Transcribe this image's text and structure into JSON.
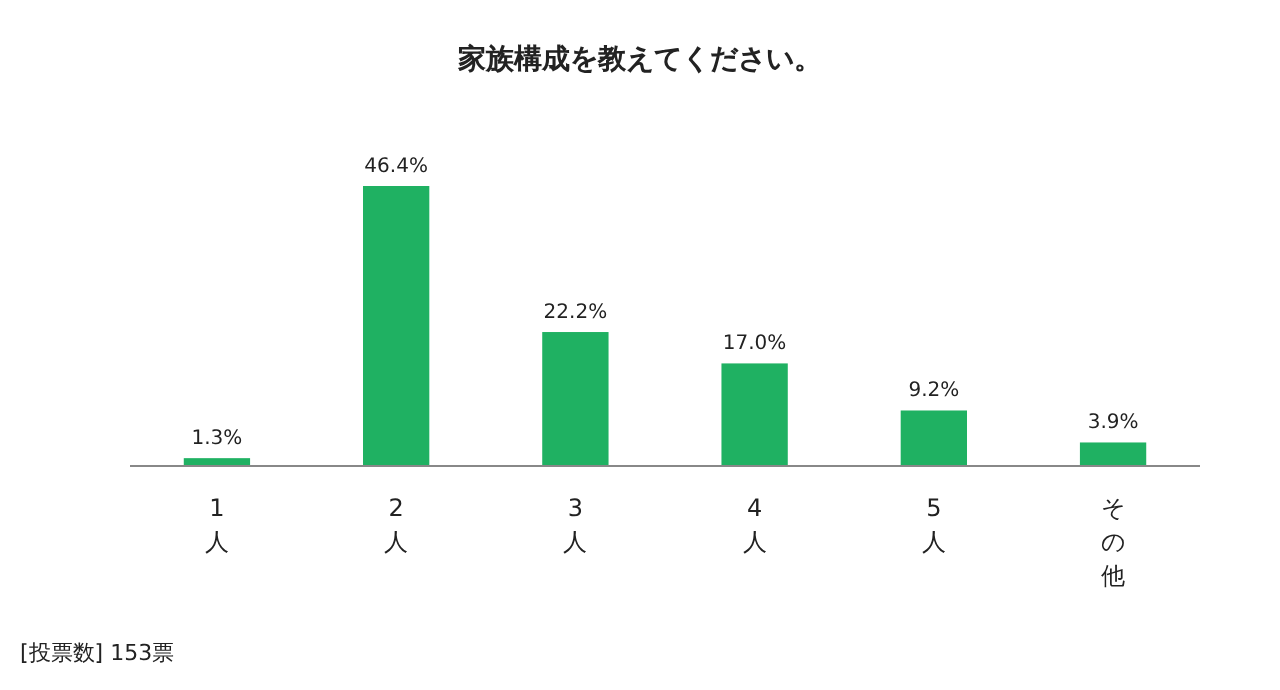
{
  "chart_data": {
    "type": "bar",
    "title": "家族構成を教えてください。",
    "categories": [
      "1人",
      "2人",
      "3人",
      "4人",
      "5人",
      "その他"
    ],
    "values": [
      1.3,
      46.4,
      22.2,
      17.0,
      9.2,
      3.9
    ],
    "value_labels": [
      "1.3%",
      "46.4%",
      "22.2%",
      "17.0%",
      "9.2%",
      "3.9%"
    ],
    "color": "#1fb162",
    "annotations": [
      "[投票数] 153票"
    ]
  }
}
